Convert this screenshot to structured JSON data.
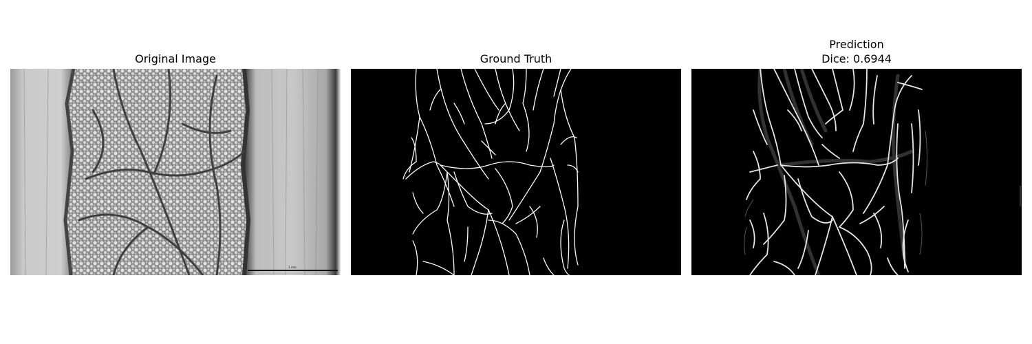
{
  "panels": [
    {
      "title": "Original Image"
    },
    {
      "title": "Ground Truth"
    },
    {
      "title": "Prediction",
      "subtitle": "Dice: 0.6944"
    }
  ],
  "scale_bar_label": "1 mm",
  "colors": {
    "background": "#ffffff",
    "mask_background": "#000000",
    "vessel": "#ffffff"
  }
}
